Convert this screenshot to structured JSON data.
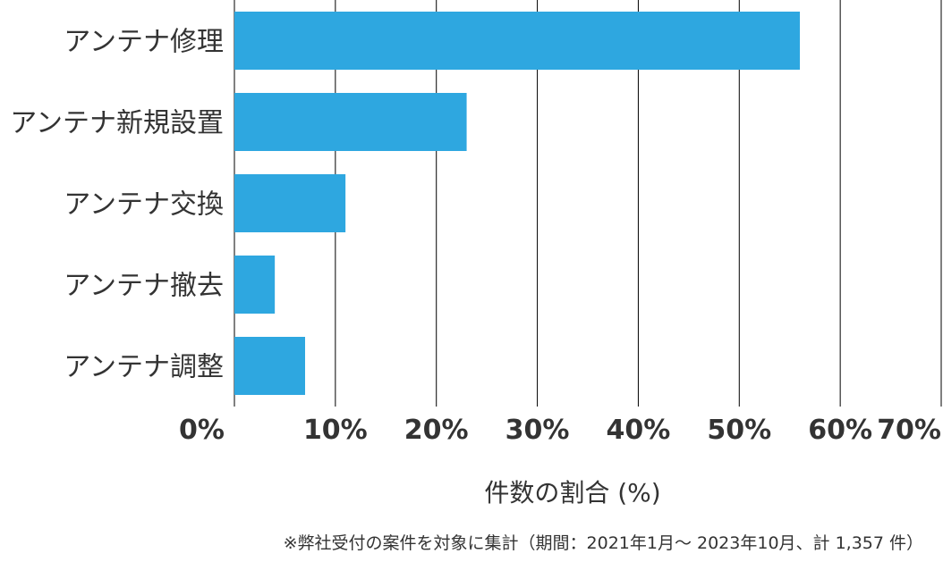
{
  "chart_data": {
    "type": "bar",
    "orientation": "horizontal",
    "categories": [
      "アンテナ修理",
      "アンテナ新規設置",
      "アンテナ交換",
      "アンテナ撤去",
      "アンテナ調整"
    ],
    "values": [
      56,
      23,
      11,
      4,
      7
    ],
    "xlim": [
      0,
      70
    ],
    "x_ticks": [
      "0%",
      "10%",
      "20%",
      "30%",
      "40%",
      "50%",
      "60%",
      "70%"
    ],
    "xlabel": "件数の割合 (%)",
    "grid": true,
    "bar_color": "#2ea7e0",
    "footnote": "※弊社受付の案件を対象に集計（期間：2021年1月～ 2023年10月、計 1,357 件）"
  }
}
